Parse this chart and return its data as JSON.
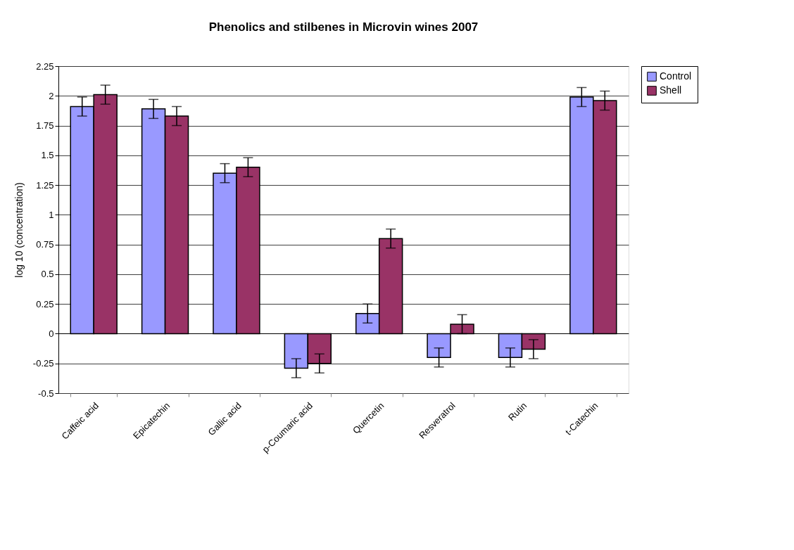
{
  "chart_data": {
    "type": "bar",
    "title": "Phenolics and stilbenes in Microvin wines 2007",
    "ylabel": "log 10 (concentration)",
    "categories": [
      "Caffeic acid",
      "Epicatechin",
      "Gallic acid",
      "p-Coumaric acid",
      "Quercetin",
      "Resveratrol",
      "Rutin",
      "t-Catechin"
    ],
    "series": [
      {
        "name": "Control",
        "color": "#9999ff",
        "values": [
          1.91,
          1.89,
          1.35,
          -0.29,
          0.17,
          -0.2,
          -0.2,
          1.99
        ],
        "errors": [
          0.08,
          0.08,
          0.08,
          0.08,
          0.08,
          0.08,
          0.08,
          0.08
        ]
      },
      {
        "name": "Shell",
        "color": "#993366",
        "values": [
          2.01,
          1.83,
          1.4,
          -0.25,
          0.8,
          0.08,
          -0.13,
          1.96
        ],
        "errors": [
          0.08,
          0.08,
          0.08,
          0.08,
          0.08,
          0.08,
          0.08,
          0.08
        ]
      }
    ],
    "ylim": [
      -0.5,
      2.25
    ],
    "yticks": [
      -0.5,
      -0.25,
      0,
      0.25,
      0.5,
      0.75,
      1,
      1.25,
      1.5,
      1.75,
      2,
      2.25
    ],
    "grid": "y",
    "legend": "right"
  }
}
